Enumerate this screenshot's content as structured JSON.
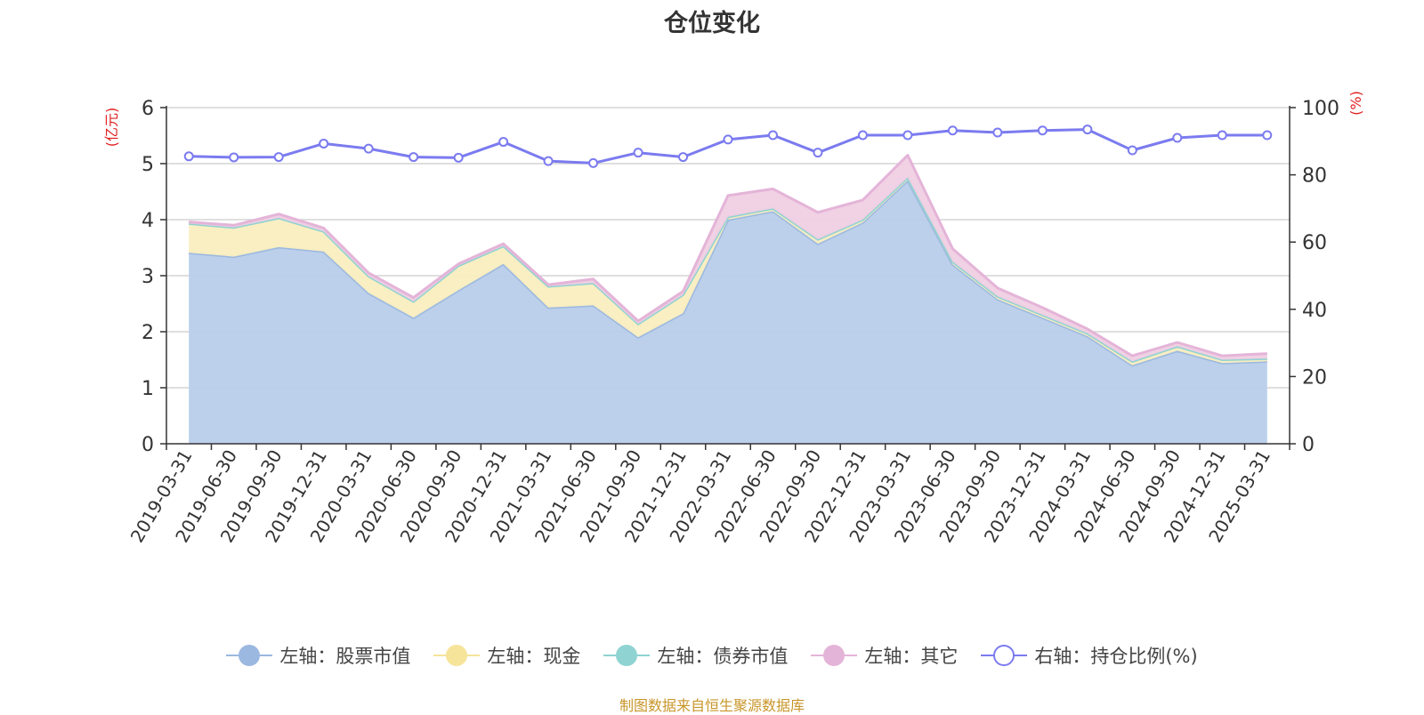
{
  "title": "仓位变化",
  "footer": "制图数据来自恒生聚源数据库",
  "colors": {
    "title": "#333333",
    "footer": "#c8962a",
    "axis_unit": "#e02020",
    "grid": "#cccccc",
    "stock": "#9bb8e0",
    "stock_fill": "#b8cdea",
    "cash": "#f5e49a",
    "cash_fill": "#faeec0",
    "bond": "#8fd3d3",
    "other": "#e4b4d8",
    "other_fill": "#f0cfe3",
    "ratio": "#7b7bf0"
  },
  "chart_data": {
    "type": "area",
    "stacked": true,
    "x": [
      "2019-03-31",
      "2019-06-30",
      "2019-09-30",
      "2019-12-31",
      "2020-03-31",
      "2020-06-30",
      "2020-09-30",
      "2020-12-31",
      "2021-03-31",
      "2021-06-30",
      "2021-09-30",
      "2021-12-31",
      "2022-03-31",
      "2022-06-30",
      "2022-09-30",
      "2022-12-31",
      "2023-03-31",
      "2023-06-30",
      "2023-09-30",
      "2023-12-31",
      "2024-03-31",
      "2024-06-30",
      "2024-09-30",
      "2024-12-31",
      "2025-03-31"
    ],
    "left_axis": {
      "unit": "(亿元)",
      "ylim": [
        0,
        6
      ],
      "ticks": [
        "0",
        "1",
        "2",
        "3",
        "4",
        "5",
        "6"
      ]
    },
    "right_axis": {
      "unit": "(%)",
      "ylim": [
        0,
        100
      ],
      "ticks": [
        "0",
        "20",
        "40",
        "60",
        "80",
        "100"
      ]
    },
    "grid": true,
    "legend_position": "bottom",
    "series": [
      {
        "name": "左轴：股票市值",
        "axis": "left",
        "kind": "area",
        "values": [
          3.41,
          3.34,
          3.51,
          3.43,
          2.69,
          2.25,
          2.74,
          3.21,
          2.43,
          2.47,
          1.9,
          2.33,
          4.0,
          4.15,
          3.57,
          3.95,
          4.7,
          3.2,
          2.58,
          2.25,
          1.92,
          1.4,
          1.66,
          1.44,
          1.47
        ]
      },
      {
        "name": "左轴：现金",
        "axis": "left",
        "kind": "area",
        "values": [
          0.52,
          0.52,
          0.52,
          0.36,
          0.3,
          0.29,
          0.44,
          0.32,
          0.38,
          0.4,
          0.24,
          0.33,
          0.05,
          0.05,
          0.08,
          0.05,
          0.05,
          0.05,
          0.05,
          0.05,
          0.05,
          0.07,
          0.08,
          0.06,
          0.05
        ]
      },
      {
        "name": "左轴：债券市值",
        "axis": "left",
        "kind": "area",
        "values": [
          0,
          0,
          0,
          0,
          0,
          0,
          0,
          0,
          0,
          0,
          0,
          0,
          0,
          0,
          0,
          0,
          0,
          0,
          0,
          0,
          0,
          0,
          0,
          0,
          0
        ]
      },
      {
        "name": "左轴：其它",
        "axis": "left",
        "kind": "area",
        "values": [
          0.03,
          0.04,
          0.07,
          0.06,
          0.06,
          0.07,
          0.03,
          0.04,
          0.03,
          0.07,
          0.05,
          0.06,
          0.38,
          0.35,
          0.48,
          0.35,
          0.4,
          0.23,
          0.15,
          0.13,
          0.08,
          0.1,
          0.07,
          0.07,
          0.09
        ]
      },
      {
        "name": "右轴：持仓比例(%)",
        "axis": "right",
        "kind": "line",
        "values": [
          85.5,
          85.2,
          85.3,
          89.3,
          87.8,
          85.3,
          85.1,
          89.8,
          84.1,
          83.5,
          86.6,
          85.3,
          90.5,
          91.8,
          86.6,
          91.8,
          91.8,
          93.2,
          92.6,
          93.2,
          93.5,
          87.3,
          91.0,
          91.8,
          91.8
        ]
      }
    ]
  }
}
